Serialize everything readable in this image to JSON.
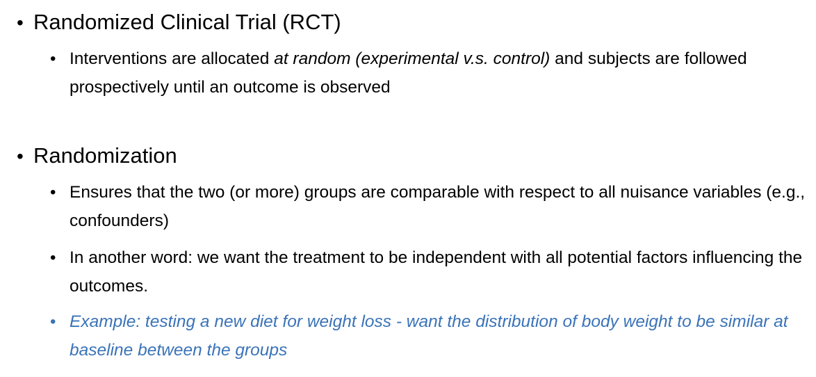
{
  "bullets": {
    "rct": {
      "title": "Randomized Clinical Trial (RCT)",
      "sub": [
        {
          "pre": "Interventions are allocated ",
          "italic": "at random (experimental v.s. control)",
          "post": " and subjects are followed prospectively until an outcome is observed"
        }
      ]
    },
    "randomization": {
      "title": "Randomization",
      "sub": [
        "Ensures that the two (or more) groups are comparable with respect to all nuisance variables (e.g., confounders)",
        "In another word: we want the treatment to be independent with all potential factors influencing the outcomes.",
        "Example: testing a new diet for weight loss  - want the distribution of body weight to be similar at baseline between the groups"
      ]
    }
  },
  "bullet_glyph": "•",
  "colors": {
    "text": "#000000",
    "example_blue": "#3a73b8"
  }
}
